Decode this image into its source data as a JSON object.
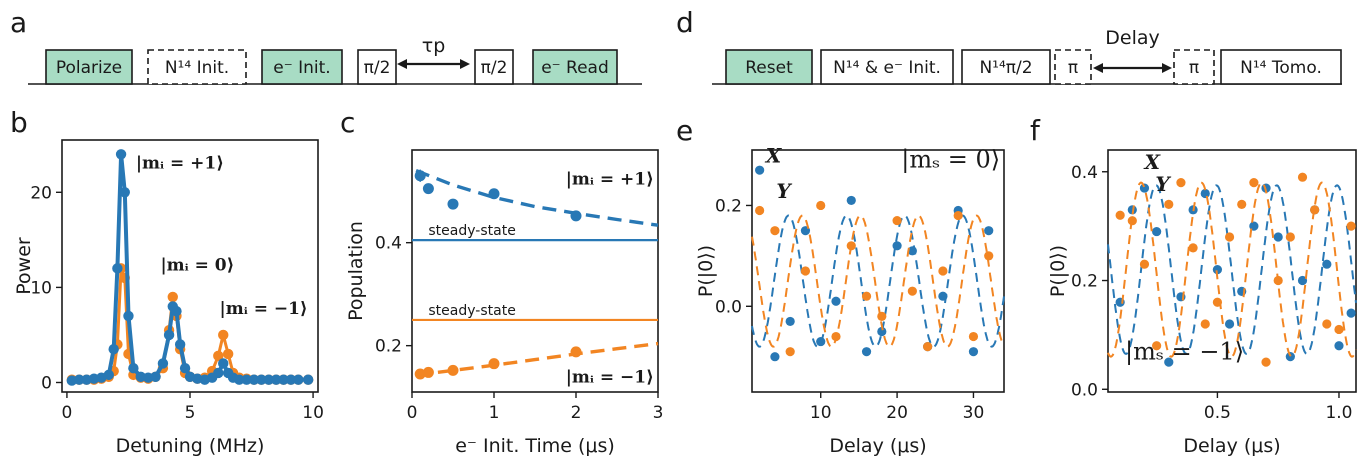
{
  "panels": {
    "a": "a",
    "b": "b",
    "c": "c",
    "d": "d",
    "e": "e",
    "f": "f"
  },
  "sequence_a": {
    "boxes": [
      {
        "label": "Polarize",
        "style": "filled"
      },
      {
        "label": "N¹⁴ Init.",
        "style": "dashed"
      },
      {
        "label": "e⁻ Init.",
        "style": "filled"
      },
      {
        "label": "π/2",
        "style": "solid"
      },
      {
        "label": "π/2",
        "style": "solid"
      },
      {
        "label": "e⁻ Read",
        "style": "filled"
      }
    ],
    "arrow_label": "τp"
  },
  "sequence_d": {
    "boxes": [
      {
        "label": "Reset",
        "style": "filled"
      },
      {
        "label": "N¹⁴ & e⁻ Init.",
        "style": "solid"
      },
      {
        "label": "N¹⁴π/2",
        "style": "solid"
      },
      {
        "label": "π",
        "style": "dashed"
      },
      {
        "label": "π",
        "style": "dashed"
      },
      {
        "label": "N¹⁴ Tomo.",
        "style": "solid"
      }
    ],
    "arrow_label": "Delay"
  },
  "colors": {
    "blue": "#2878b5",
    "orange": "#f28522",
    "green_box": "#a8dcc4",
    "axis": "#1a1a1a"
  },
  "chart_data": [
    {
      "id": "b",
      "type": "line",
      "xlabel": "Detuning (MHz)",
      "ylabel": "Power",
      "xlim": [
        -0.2,
        10.2
      ],
      "ylim": [
        -1,
        25.5
      ],
      "xticks": [
        0,
        5,
        10
      ],
      "yticks": [
        0,
        10,
        20
      ],
      "annotations": [
        {
          "text": "|mᵢ = +1⟩",
          "x": 2.8,
          "y": 22.5
        },
        {
          "text": "|mᵢ = 0⟩",
          "x": 3.8,
          "y": 11.8
        },
        {
          "text": "|mᵢ = −1⟩",
          "x": 6.2,
          "y": 7.2
        }
      ],
      "series": [
        {
          "color": "orange",
          "x": [
            0.2,
            0.5,
            0.8,
            1.1,
            1.4,
            1.7,
            1.9,
            2.05,
            2.2,
            2.35,
            2.5,
            2.7,
            3.0,
            3.3,
            3.6,
            3.9,
            4.15,
            4.3,
            4.45,
            4.6,
            4.8,
            5.0,
            5.3,
            5.6,
            5.9,
            6.15,
            6.35,
            6.55,
            6.75,
            7.0,
            7.3,
            7.6,
            7.9,
            8.2,
            8.5,
            8.8,
            9.1,
            9.4,
            9.8
          ],
          "y": [
            0.3,
            0.3,
            0.3,
            0.3,
            0.4,
            0.6,
            1.2,
            4.0,
            12.0,
            11.0,
            3.0,
            0.8,
            0.5,
            0.4,
            0.6,
            1.5,
            5.5,
            9.0,
            7.0,
            3.5,
            1.0,
            0.6,
            0.4,
            0.5,
            1.2,
            2.8,
            5.0,
            3.0,
            1.0,
            0.5,
            0.4,
            0.3,
            0.3,
            0.3,
            0.3,
            0.3,
            0.3,
            0.3,
            0.3
          ]
        },
        {
          "color": "blue",
          "x": [
            0.2,
            0.5,
            0.8,
            1.1,
            1.4,
            1.7,
            1.9,
            2.05,
            2.2,
            2.35,
            2.5,
            2.7,
            3.0,
            3.3,
            3.6,
            3.9,
            4.15,
            4.3,
            4.45,
            4.6,
            4.8,
            5.0,
            5.3,
            5.6,
            5.9,
            6.15,
            6.35,
            6.55,
            6.75,
            7.0,
            7.3,
            7.6,
            7.9,
            8.2,
            8.5,
            8.8,
            9.1,
            9.4,
            9.8
          ],
          "y": [
            0.2,
            0.3,
            0.3,
            0.4,
            0.5,
            0.8,
            3.5,
            12.0,
            24.0,
            20.0,
            7.0,
            1.5,
            0.6,
            0.5,
            0.6,
            2.0,
            5.0,
            8.0,
            7.5,
            4.0,
            1.5,
            0.6,
            0.4,
            0.3,
            0.5,
            1.0,
            2.0,
            1.0,
            0.5,
            0.3,
            0.3,
            0.3,
            0.3,
            0.3,
            0.3,
            0.3,
            0.3,
            0.3,
            0.3
          ]
        }
      ]
    },
    {
      "id": "c",
      "type": "scatter",
      "xlabel": "e⁻ Init. Time (μs)",
      "ylabel": "Population",
      "xlim": [
        0,
        3
      ],
      "ylim": [
        0.11,
        0.58
      ],
      "xticks": [
        0,
        1,
        2,
        3
      ],
      "yticks": [
        0.2,
        0.4
      ],
      "annotations": [
        {
          "text": "|mᵢ = +1⟩",
          "color": "blue",
          "x": 2.95,
          "y": 0.525
        },
        {
          "text": "|mᵢ = −1⟩",
          "color": "orange",
          "x": 2.95,
          "y": 0.14
        },
        {
          "text": "steady-state",
          "color": "blue",
          "x": 0.2,
          "y": 0.415
        },
        {
          "text": "steady-state",
          "color": "orange",
          "x": 0.2,
          "y": 0.26
        }
      ],
      "hlines": [
        {
          "y": 0.405,
          "color": "blue"
        },
        {
          "y": 0.25,
          "color": "orange"
        }
      ],
      "series": [
        {
          "color": "blue",
          "x": [
            0.1,
            0.2,
            0.5,
            1.0,
            2.0
          ],
          "y": [
            0.53,
            0.505,
            0.475,
            0.495,
            0.452
          ],
          "err": [
            0.012,
            0.008,
            0.006,
            0.01,
            0.008
          ],
          "fit": {
            "x": [
              0.05,
              0.5,
              1.0,
              1.5,
              2.0,
              2.5,
              3.0
            ],
            "y": [
              0.54,
              0.512,
              0.488,
              0.47,
              0.457,
              0.445,
              0.434
            ]
          }
        },
        {
          "color": "orange",
          "x": [
            0.1,
            0.2,
            0.5,
            1.0,
            2.0
          ],
          "y": [
            0.145,
            0.148,
            0.152,
            0.165,
            0.188
          ],
          "err": [
            0.008,
            0.006,
            0.006,
            0.008,
            0.008
          ],
          "fit": {
            "x": [
              0.05,
              0.5,
              1.0,
              1.5,
              2.0,
              2.5,
              3.0
            ],
            "y": [
              0.143,
              0.152,
              0.162,
              0.173,
              0.184,
              0.194,
              0.204
            ]
          }
        }
      ]
    },
    {
      "id": "e",
      "type": "scatter",
      "xlabel": "Delay (μs)",
      "ylabel": "P(|0⟩)",
      "xlim": [
        1,
        34
      ],
      "ylim": [
        -0.17,
        0.31
      ],
      "xticks": [
        10,
        20,
        30
      ],
      "yticks": [
        0.0,
        0.2
      ],
      "annotations": [
        {
          "text": "|mₛ = 0⟩",
          "x": 33.5,
          "y": 0.275
        },
        {
          "text": "X",
          "color": "blue",
          "x": 2.8,
          "y": 0.285
        },
        {
          "text": "Y",
          "color": "orange",
          "x": 4.2,
          "y": 0.215
        }
      ],
      "series": [
        {
          "name": "X",
          "color": "blue",
          "x": [
            2,
            4,
            6,
            8,
            10,
            12,
            14,
            16,
            18,
            20,
            22,
            24,
            26,
            28,
            30,
            32
          ],
          "y": [
            0.27,
            -0.1,
            -0.03,
            0.15,
            -0.07,
            0.01,
            0.21,
            -0.09,
            -0.05,
            0.12,
            0.11,
            -0.08,
            0.02,
            0.19,
            -0.09,
            0.15
          ],
          "fit": {
            "amp": 0.13,
            "offset": 0.05,
            "period": 7.6,
            "phase": 1.5
          }
        },
        {
          "name": "Y",
          "color": "orange",
          "x": [
            2,
            4,
            6,
            8,
            10,
            12,
            14,
            16,
            18,
            20,
            22,
            24,
            26,
            28,
            30,
            32
          ],
          "y": [
            0.19,
            0.15,
            -0.09,
            0.07,
            0.2,
            -0.06,
            0.12,
            0.02,
            -0.02,
            0.17,
            0.03,
            -0.08,
            0.07,
            0.18,
            -0.06,
            0.1
          ],
          "fit": {
            "amp": 0.13,
            "offset": 0.05,
            "period": 7.6,
            "phase": 0.0
          }
        }
      ]
    },
    {
      "id": "f",
      "type": "scatter",
      "xlabel": "Delay (μs)",
      "ylabel": "P(|0⟩)",
      "xlim": [
        0.05,
        1.07
      ],
      "ylim": [
        -0.005,
        0.44
      ],
      "xticks": [
        0.5,
        1.0
      ],
      "yticks": [
        0.0,
        0.2,
        0.4
      ],
      "annotations": [
        {
          "text": "|mₛ = −1⟩",
          "x": 0.12,
          "y": 0.055
        },
        {
          "text": "X",
          "color": "blue",
          "x": 0.2,
          "y": 0.405
        },
        {
          "text": "Y",
          "color": "orange",
          "x": 0.245,
          "y": 0.365
        }
      ],
      "series": [
        {
          "name": "X",
          "color": "blue",
          "x": [
            0.1,
            0.15,
            0.2,
            0.25,
            0.3,
            0.35,
            0.4,
            0.45,
            0.5,
            0.55,
            0.6,
            0.65,
            0.7,
            0.75,
            0.8,
            0.85,
            0.9,
            0.95,
            1.0,
            1.05
          ],
          "y": [
            0.16,
            0.33,
            0.37,
            0.29,
            0.05,
            0.17,
            0.33,
            0.36,
            0.22,
            0.12,
            0.18,
            0.3,
            0.37,
            0.28,
            0.06,
            0.2,
            0.33,
            0.23,
            0.08,
            0.14
          ],
          "fit": {
            "amp": 0.155,
            "offset": 0.22,
            "period": 0.248,
            "phase": 0.0
          }
        },
        {
          "name": "Y",
          "color": "orange",
          "x": [
            0.1,
            0.15,
            0.2,
            0.25,
            0.3,
            0.35,
            0.4,
            0.45,
            0.5,
            0.55,
            0.6,
            0.65,
            0.7,
            0.75,
            0.8,
            0.85,
            0.9,
            0.95,
            1.0,
            1.05
          ],
          "y": [
            0.32,
            0.31,
            0.23,
            0.08,
            0.34,
            0.38,
            0.26,
            0.12,
            0.16,
            0.28,
            0.34,
            0.38,
            0.05,
            0.2,
            0.28,
            0.39,
            0.33,
            0.12,
            0.11,
            0.3
          ],
          "fit": {
            "amp": 0.16,
            "offset": 0.22,
            "period": 0.248,
            "phase": 1.5708
          }
        }
      ]
    }
  ]
}
